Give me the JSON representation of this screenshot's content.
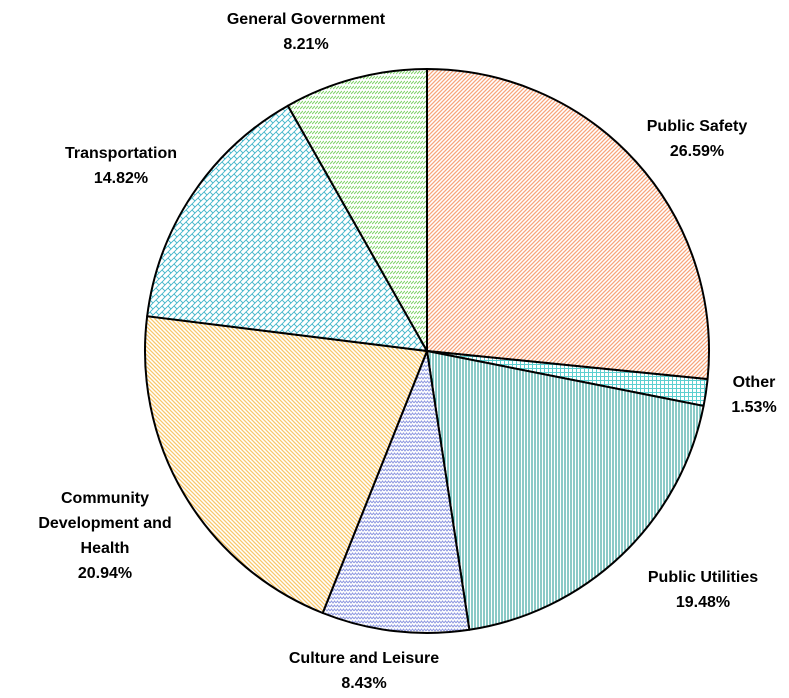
{
  "chart_data": {
    "type": "pie",
    "slices": [
      {
        "label": "Public Safety",
        "value_label": "26.59%",
        "value": 26.59,
        "color": "#f7a57a",
        "pattern": "diag-ne"
      },
      {
        "label": "Other",
        "value_label": "1.53%",
        "value": 1.53,
        "color": "#5ccfd0",
        "pattern": "grid"
      },
      {
        "label": "Public Utilities",
        "value_label": "19.48%",
        "value": 19.48,
        "color": "#17968f",
        "pattern": "vertical"
      },
      {
        "label": "Culture and Leisure",
        "value_label": "8.43%",
        "value": 8.43,
        "color": "#8f99e0",
        "pattern": "zigzag"
      },
      {
        "label": "Community Development and Health",
        "value_label": "20.94%",
        "value": 20.94,
        "color": "#f9c86a",
        "pattern": "diag-nw"
      },
      {
        "label": "Transportation",
        "value_label": "14.82%",
        "value": 14.82,
        "color": "#3fb5c9",
        "pattern": "weave"
      },
      {
        "label": "General Government",
        "value_label": "8.21%",
        "value": 8.21,
        "color": "#7fd46a",
        "pattern": "diag-nw-fine"
      }
    ]
  }
}
